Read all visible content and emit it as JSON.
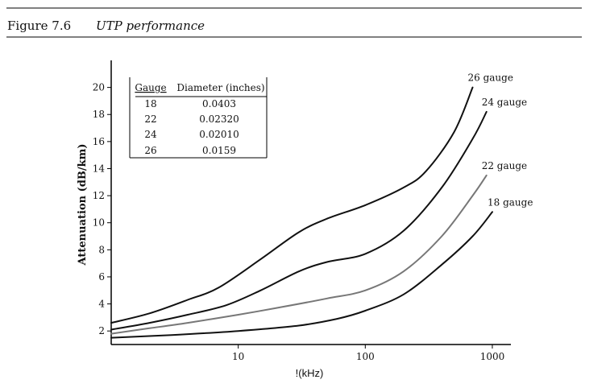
{
  "figure": {
    "number": "Figure 7.6",
    "caption": "UTP performance"
  },
  "chart_data": {
    "type": "line",
    "title": "UTP performance",
    "xlabel": "!(kHz)",
    "ylabel": "Attenuation (dB/km)",
    "xscale": "log",
    "xlim": [
      1,
      1400
    ],
    "ylim": [
      1,
      22
    ],
    "xticks": [
      10,
      100,
      1000
    ],
    "xtick_labels": [
      "10",
      "100",
      "1000"
    ],
    "yticks": [
      2,
      4,
      6,
      8,
      10,
      12,
      14,
      16,
      18,
      20
    ],
    "ytick_labels": [
      "2",
      "4",
      "6",
      "8",
      "10",
      "12",
      "14",
      "16",
      "18",
      "20"
    ],
    "grid": false,
    "series": [
      {
        "name": "26 gauge",
        "label": "26 gauge",
        "color": "#111111",
        "x": [
          1,
          2,
          4,
          7,
          15,
          30,
          50,
          100,
          200,
          300,
          500,
          700
        ],
        "y": [
          2.6,
          3.3,
          4.3,
          5.2,
          7.3,
          9.3,
          10.3,
          11.3,
          12.6,
          13.8,
          16.7,
          20.0
        ]
      },
      {
        "name": "24 gauge",
        "label": "24 gauge",
        "color": "#111111",
        "x": [
          1,
          2,
          4,
          8,
          15,
          30,
          50,
          100,
          200,
          400,
          700,
          900
        ],
        "y": [
          2.1,
          2.6,
          3.2,
          3.9,
          5.0,
          6.4,
          7.1,
          7.7,
          9.4,
          12.6,
          16.2,
          18.2
        ]
      },
      {
        "name": "22 gauge",
        "label": "22 gauge",
        "color": "#777777",
        "x": [
          1,
          2,
          4,
          10,
          20,
          50,
          100,
          200,
          400,
          700,
          900
        ],
        "y": [
          1.8,
          2.2,
          2.6,
          3.2,
          3.7,
          4.4,
          5.0,
          6.4,
          9.0,
          12.0,
          13.5
        ]
      },
      {
        "name": "18 gauge",
        "label": "18 gauge",
        "color": "#111111",
        "x": [
          1,
          3,
          10,
          30,
          60,
          100,
          200,
          400,
          700,
          1000
        ],
        "y": [
          1.5,
          1.7,
          2.0,
          2.4,
          2.9,
          3.5,
          4.7,
          6.9,
          9.0,
          10.8
        ]
      }
    ],
    "annotations": [
      {
        "title": "",
        "headers": [
          "Gauge",
          "Diameter (inches)"
        ],
        "rows": [
          [
            "18",
            "0.0403"
          ],
          [
            "22",
            "0.02320"
          ],
          [
            "24",
            "0.02010"
          ],
          [
            "26",
            "0.0159"
          ]
        ],
        "placement": "top-left"
      }
    ]
  }
}
